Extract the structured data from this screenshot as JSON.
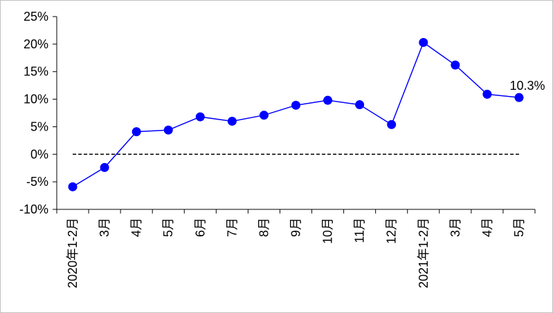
{
  "chart_data": {
    "type": "line",
    "categories": [
      "2020年1-2月",
      "3月",
      "4月",
      "5月",
      "6月",
      "7月",
      "8月",
      "9月",
      "10月",
      "11月",
      "12月",
      "2021年1-2月",
      "3月",
      "4月",
      "5月"
    ],
    "series": [
      {
        "color": "#0000ff",
        "values": [
          -5.9,
          -2.4,
          4.1,
          4.4,
          6.8,
          6.0,
          7.1,
          8.9,
          9.8,
          9.0,
          5.4,
          20.3,
          16.2,
          10.9,
          10.3
        ],
        "value_labels": [
          null,
          null,
          null,
          null,
          null,
          null,
          null,
          null,
          null,
          null,
          null,
          null,
          null,
          null,
          "10.3%"
        ]
      }
    ],
    "ylim": [
      -10,
      25
    ],
    "yticks": [
      {
        "value": -10,
        "label": "-10%"
      },
      {
        "value": -5,
        "label": "-5%"
      },
      {
        "value": 0,
        "label": "0%"
      },
      {
        "value": 5,
        "label": "5%"
      },
      {
        "value": 10,
        "label": "10%"
      },
      {
        "value": 15,
        "label": "15%"
      },
      {
        "value": 20,
        "label": "20%"
      },
      {
        "value": 25,
        "label": "25%"
      }
    ]
  }
}
